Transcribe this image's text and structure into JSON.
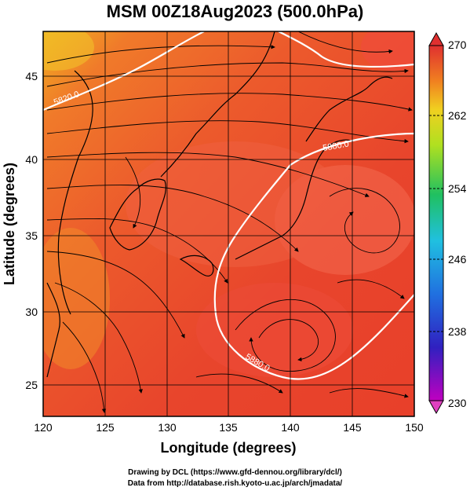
{
  "title": "MSM 00Z18Aug2023 (500.0hPa)",
  "map": {
    "xlabel": "Longitude (degrees)",
    "ylabel": "Latitude  (degrees)",
    "lon_ticks": [
      "120",
      "125",
      "130",
      "135",
      "140",
      "145",
      "150"
    ],
    "lat_ticks": [
      "25",
      "30",
      "35",
      "40",
      "45"
    ],
    "contour_labels": [
      "5820.0",
      "5880.0",
      "5880.0"
    ]
  },
  "colorbar": {
    "ticks": [
      "270",
      "262",
      "254",
      "246",
      "238",
      "230"
    ]
  },
  "footer": {
    "line1": "Drawing by DCL (https://www.gfd-dennou.org/library/dcl/)",
    "line2": "Data from http://database.rish.kyoto-u.ac.jp/arch/jmadata/"
  },
  "colors": {
    "warm": "#e8412a",
    "warm_light": "#f26a3e",
    "orange": "#f08a2a",
    "yellow": "#f2c52a",
    "contour": "#ffffff",
    "streamline": "#000000"
  }
}
